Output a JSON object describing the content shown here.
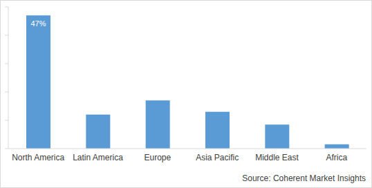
{
  "chart_data": {
    "type": "bar",
    "categories": [
      "North America",
      "Latin America",
      "Europe",
      "Asia Pacific",
      "Middle East",
      "Africa"
    ],
    "values": [
      47,
      12,
      17,
      13,
      8.5,
      1.5
    ],
    "value_labels": [
      "47%",
      null,
      null,
      null,
      null,
      null
    ],
    "data_labels": true,
    "color": "#5b9bd5",
    "ylim": [
      0,
      50
    ],
    "yticks": [
      0,
      5,
      10,
      15,
      20,
      25,
      30,
      35,
      40,
      45,
      50
    ],
    "grid": false,
    "tick_labels": "x",
    "source": "Source: Coherent Market Insights"
  }
}
